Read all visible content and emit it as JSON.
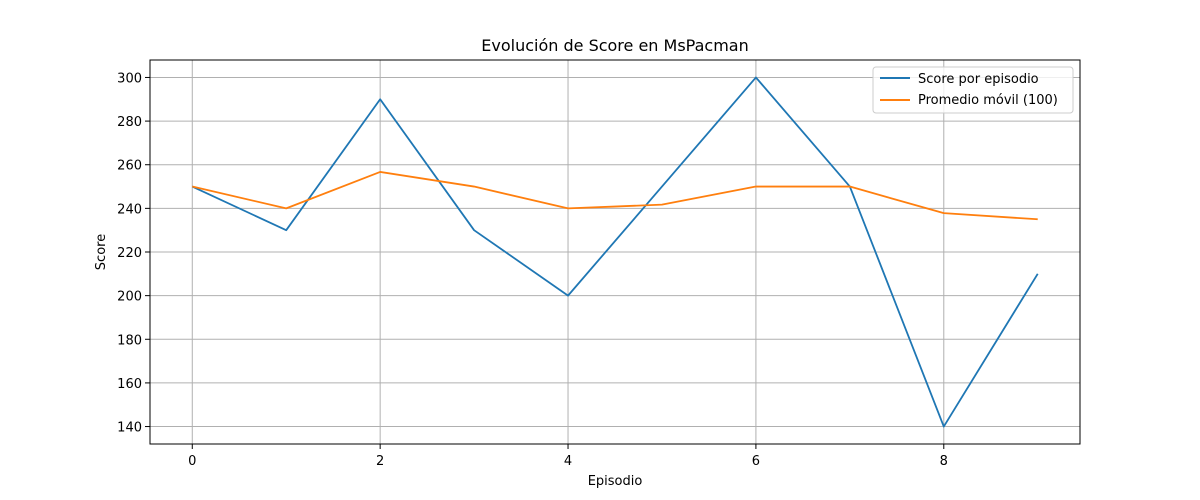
{
  "chart_data": {
    "type": "line",
    "title": "Evolución de Score en MsPacman",
    "xlabel": "Episodio",
    "ylabel": "Score",
    "x": [
      0,
      1,
      2,
      3,
      4,
      5,
      6,
      7,
      8,
      9
    ],
    "xlim": [
      -0.45,
      9.45
    ],
    "ylim": [
      132.0,
      308.0
    ],
    "xticks": [
      0,
      2,
      4,
      6,
      8
    ],
    "yticks": [
      140,
      160,
      180,
      200,
      220,
      240,
      260,
      280,
      300
    ],
    "grid": true,
    "legend_position": "top-right",
    "series": [
      {
        "name": "Score por episodio",
        "color": "#1f77b4",
        "values": [
          250,
          230,
          290,
          230,
          200,
          250,
          300,
          250,
          140,
          210
        ]
      },
      {
        "name": "Promedio móvil (100)",
        "color": "#ff7f0e",
        "values": [
          250,
          240,
          256.7,
          250,
          240,
          241.7,
          250,
          250,
          237.8,
          235
        ]
      }
    ]
  }
}
